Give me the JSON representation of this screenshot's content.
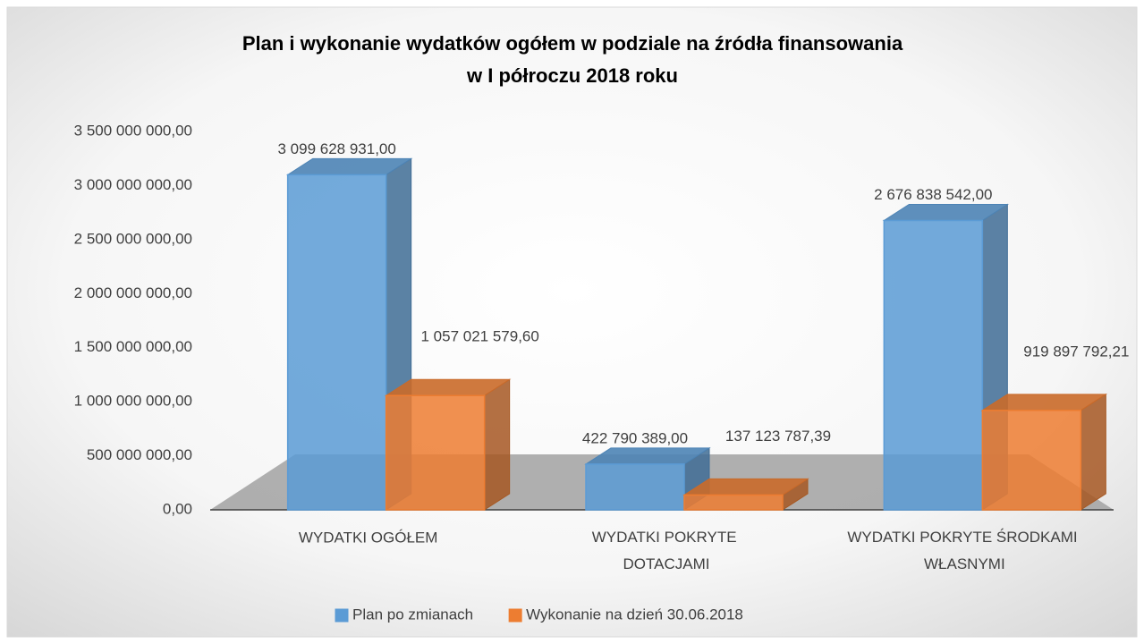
{
  "chart_data": {
    "type": "bar3d",
    "title": [
      "Plan i wykonanie wydatków ogółem w podziale na źródła finansowania",
      "w I półroczu 2018 roku"
    ],
    "categories": [
      "WYDATKI OGÓŁEM",
      "WYDATKI POKRYTE DOTACJAMI",
      "WYDATKI POKRYTE ŚRODKAMI WŁASNYMI"
    ],
    "series": [
      {
        "name": "Plan po zmianach",
        "color": "#5b9bd5",
        "values": [
          3099628931.0,
          422790389.0,
          2676838542.0
        ],
        "value_labels": [
          "3 099 628 931,00",
          "422 790 389,00",
          "2 676 838 542,00"
        ]
      },
      {
        "name": "Wykonanie na dzień 30.06.2018",
        "color": "#ed7d31",
        "values": [
          1057021579.6,
          137123787.39,
          919897792.21
        ],
        "value_labels": [
          "1 057 021 579,60",
          "137 123 787,39",
          "919 897 792,21"
        ]
      }
    ],
    "ylim": [
      0,
      3500000000
    ],
    "yticks": [
      {
        "value": 0,
        "label": "0,00"
      },
      {
        "value": 500000000,
        "label": "500 000 000,00"
      },
      {
        "value": 1000000000,
        "label": "1 000 000 000,00"
      },
      {
        "value": 1500000000,
        "label": "1 500 000 000,00"
      },
      {
        "value": 2000000000,
        "label": "2 000 000 000,00"
      },
      {
        "value": 2500000000,
        "label": "2 500 000 000,00"
      },
      {
        "value": 3000000000,
        "label": "3 000 000 000,00"
      },
      {
        "value": 3500000000,
        "label": "3 500 000 000,00"
      }
    ],
    "legend": "bottom"
  }
}
